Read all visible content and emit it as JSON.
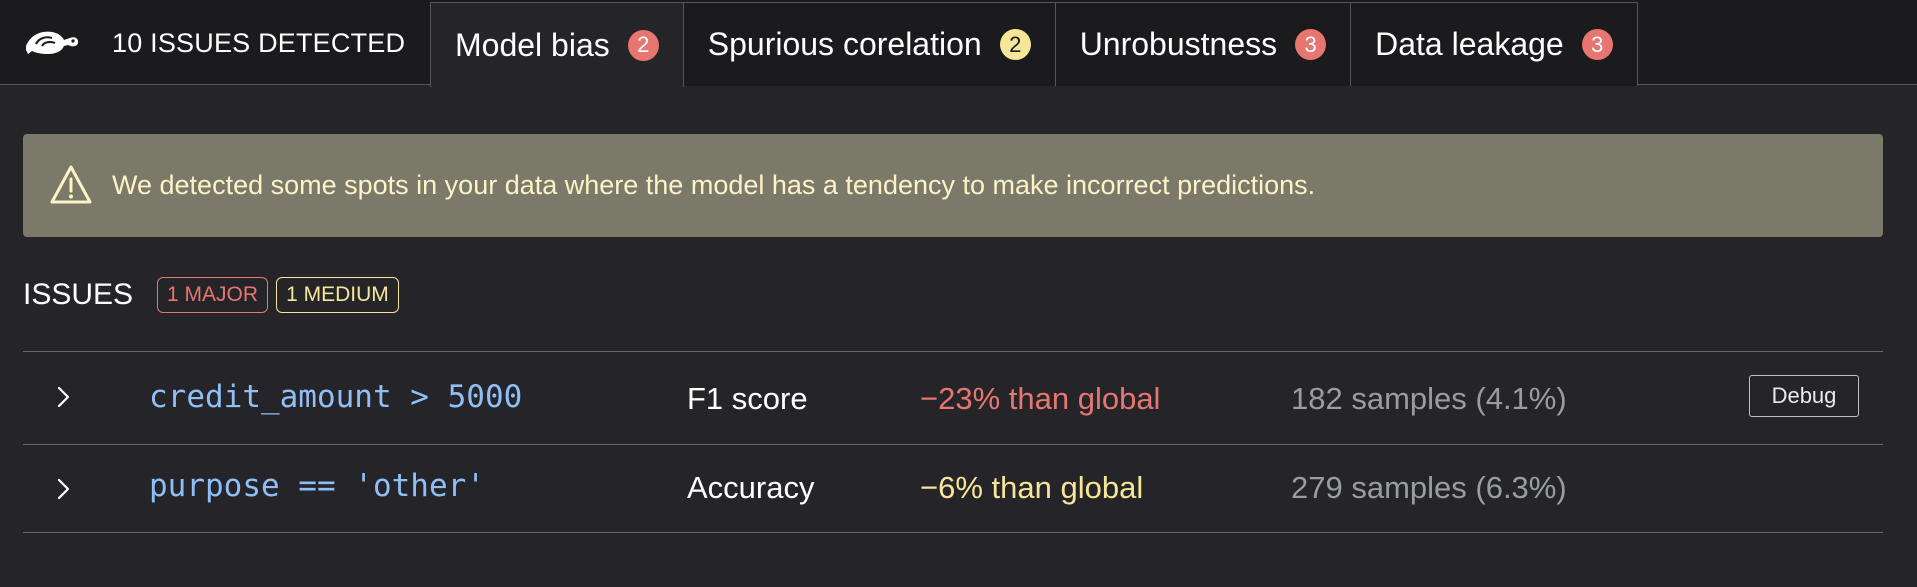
{
  "header": {
    "issues_count_text": "10 ISSUES DETECTED",
    "logo_icon": "turtle-logo-icon"
  },
  "tabs": [
    {
      "label": "Model bias",
      "count": "2",
      "badge_color": "#e77671",
      "active": true
    },
    {
      "label": "Spurious corelation",
      "count": "2",
      "badge_color": "#f7e59a",
      "active": false
    },
    {
      "label": "Unrobustness",
      "count": "3",
      "badge_color": "#e77671",
      "active": false
    },
    {
      "label": "Data leakage",
      "count": "3",
      "badge_color": "#e77671",
      "active": false
    }
  ],
  "alert": {
    "icon": "warning-icon",
    "text": "We detected some spots in your data where the model has a tendency to make incorrect predictions."
  },
  "issues": {
    "title": "ISSUES",
    "major_label": "1 MAJOR",
    "medium_label": "1 MEDIUM",
    "rows": [
      {
        "condition": "credit_amount > 5000",
        "metric": "F1 score",
        "delta": "−23% than global",
        "severity": "major",
        "samples": "182 samples (4.1%)",
        "debug_label": "Debug"
      },
      {
        "condition": "purpose == 'other'",
        "metric": "Accuracy",
        "delta": "−6% than global",
        "severity": "medium",
        "samples": "279 samples (6.3%)"
      }
    ]
  },
  "colors": {
    "background": "#252529",
    "topbar": "#1b1b1e",
    "major": "#e77671",
    "medium": "#f7e59a",
    "alert_bg": "#7b796a",
    "condition_text": "#8fbff6"
  }
}
